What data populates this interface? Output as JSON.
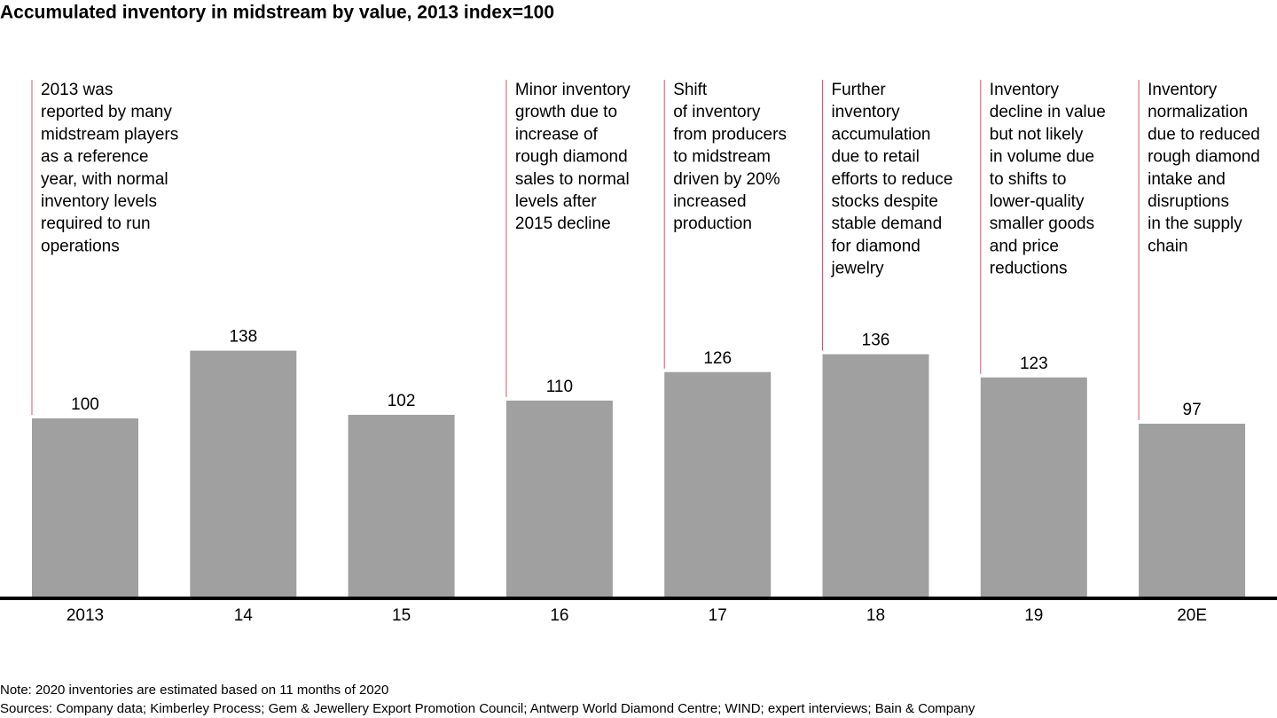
{
  "chart_data": {
    "type": "bar",
    "title": "Accumulated inventory in midstream by value, 2013 index=100",
    "categories": [
      "2013",
      "14",
      "15",
      "16",
      "17",
      "18",
      "19",
      "20E"
    ],
    "values": [
      100,
      138,
      102,
      110,
      126,
      136,
      123,
      97
    ],
    "color": "#a0a0a0",
    "annotation_color": "#e0506a",
    "annotations": [
      [
        "2013 was",
        "reported by many",
        "midstream players",
        "as a reference",
        "year, with normal",
        "inventory levels",
        "required to run",
        "operations"
      ],
      null,
      null,
      [
        "Minor inventory",
        "growth due to",
        "increase of",
        "rough diamond",
        "sales to normal",
        "levels after",
        "2015 decline"
      ],
      [
        "Shift",
        "of inventory",
        "from producers",
        "to midstream",
        "driven by 20%",
        "increased",
        "production"
      ],
      [
        "Further",
        "inventory",
        "accumulation",
        "due to retail",
        "efforts to reduce",
        "stocks despite",
        "stable demand",
        "for diamond",
        "jewelry"
      ],
      [
        "Inventory",
        "decline in value",
        "but not likely",
        "in volume due",
        "to shifts to",
        "lower-quality",
        "smaller goods",
        "and price",
        "reductions"
      ],
      [
        "Inventory",
        "normalization",
        "due to reduced",
        "rough diamond",
        "intake and",
        "disruptions",
        "in the supply",
        "chain"
      ]
    ],
    "notes": [
      "Note: 2020 inventories are estimated based on 11 months of 2020",
      "Sources: Company data; Kimberley Process; Gem & Jewellery Export Promotion Council;  Antwerp World Diamond Centre; WIND; expert interviews; Bain & Company"
    ]
  }
}
